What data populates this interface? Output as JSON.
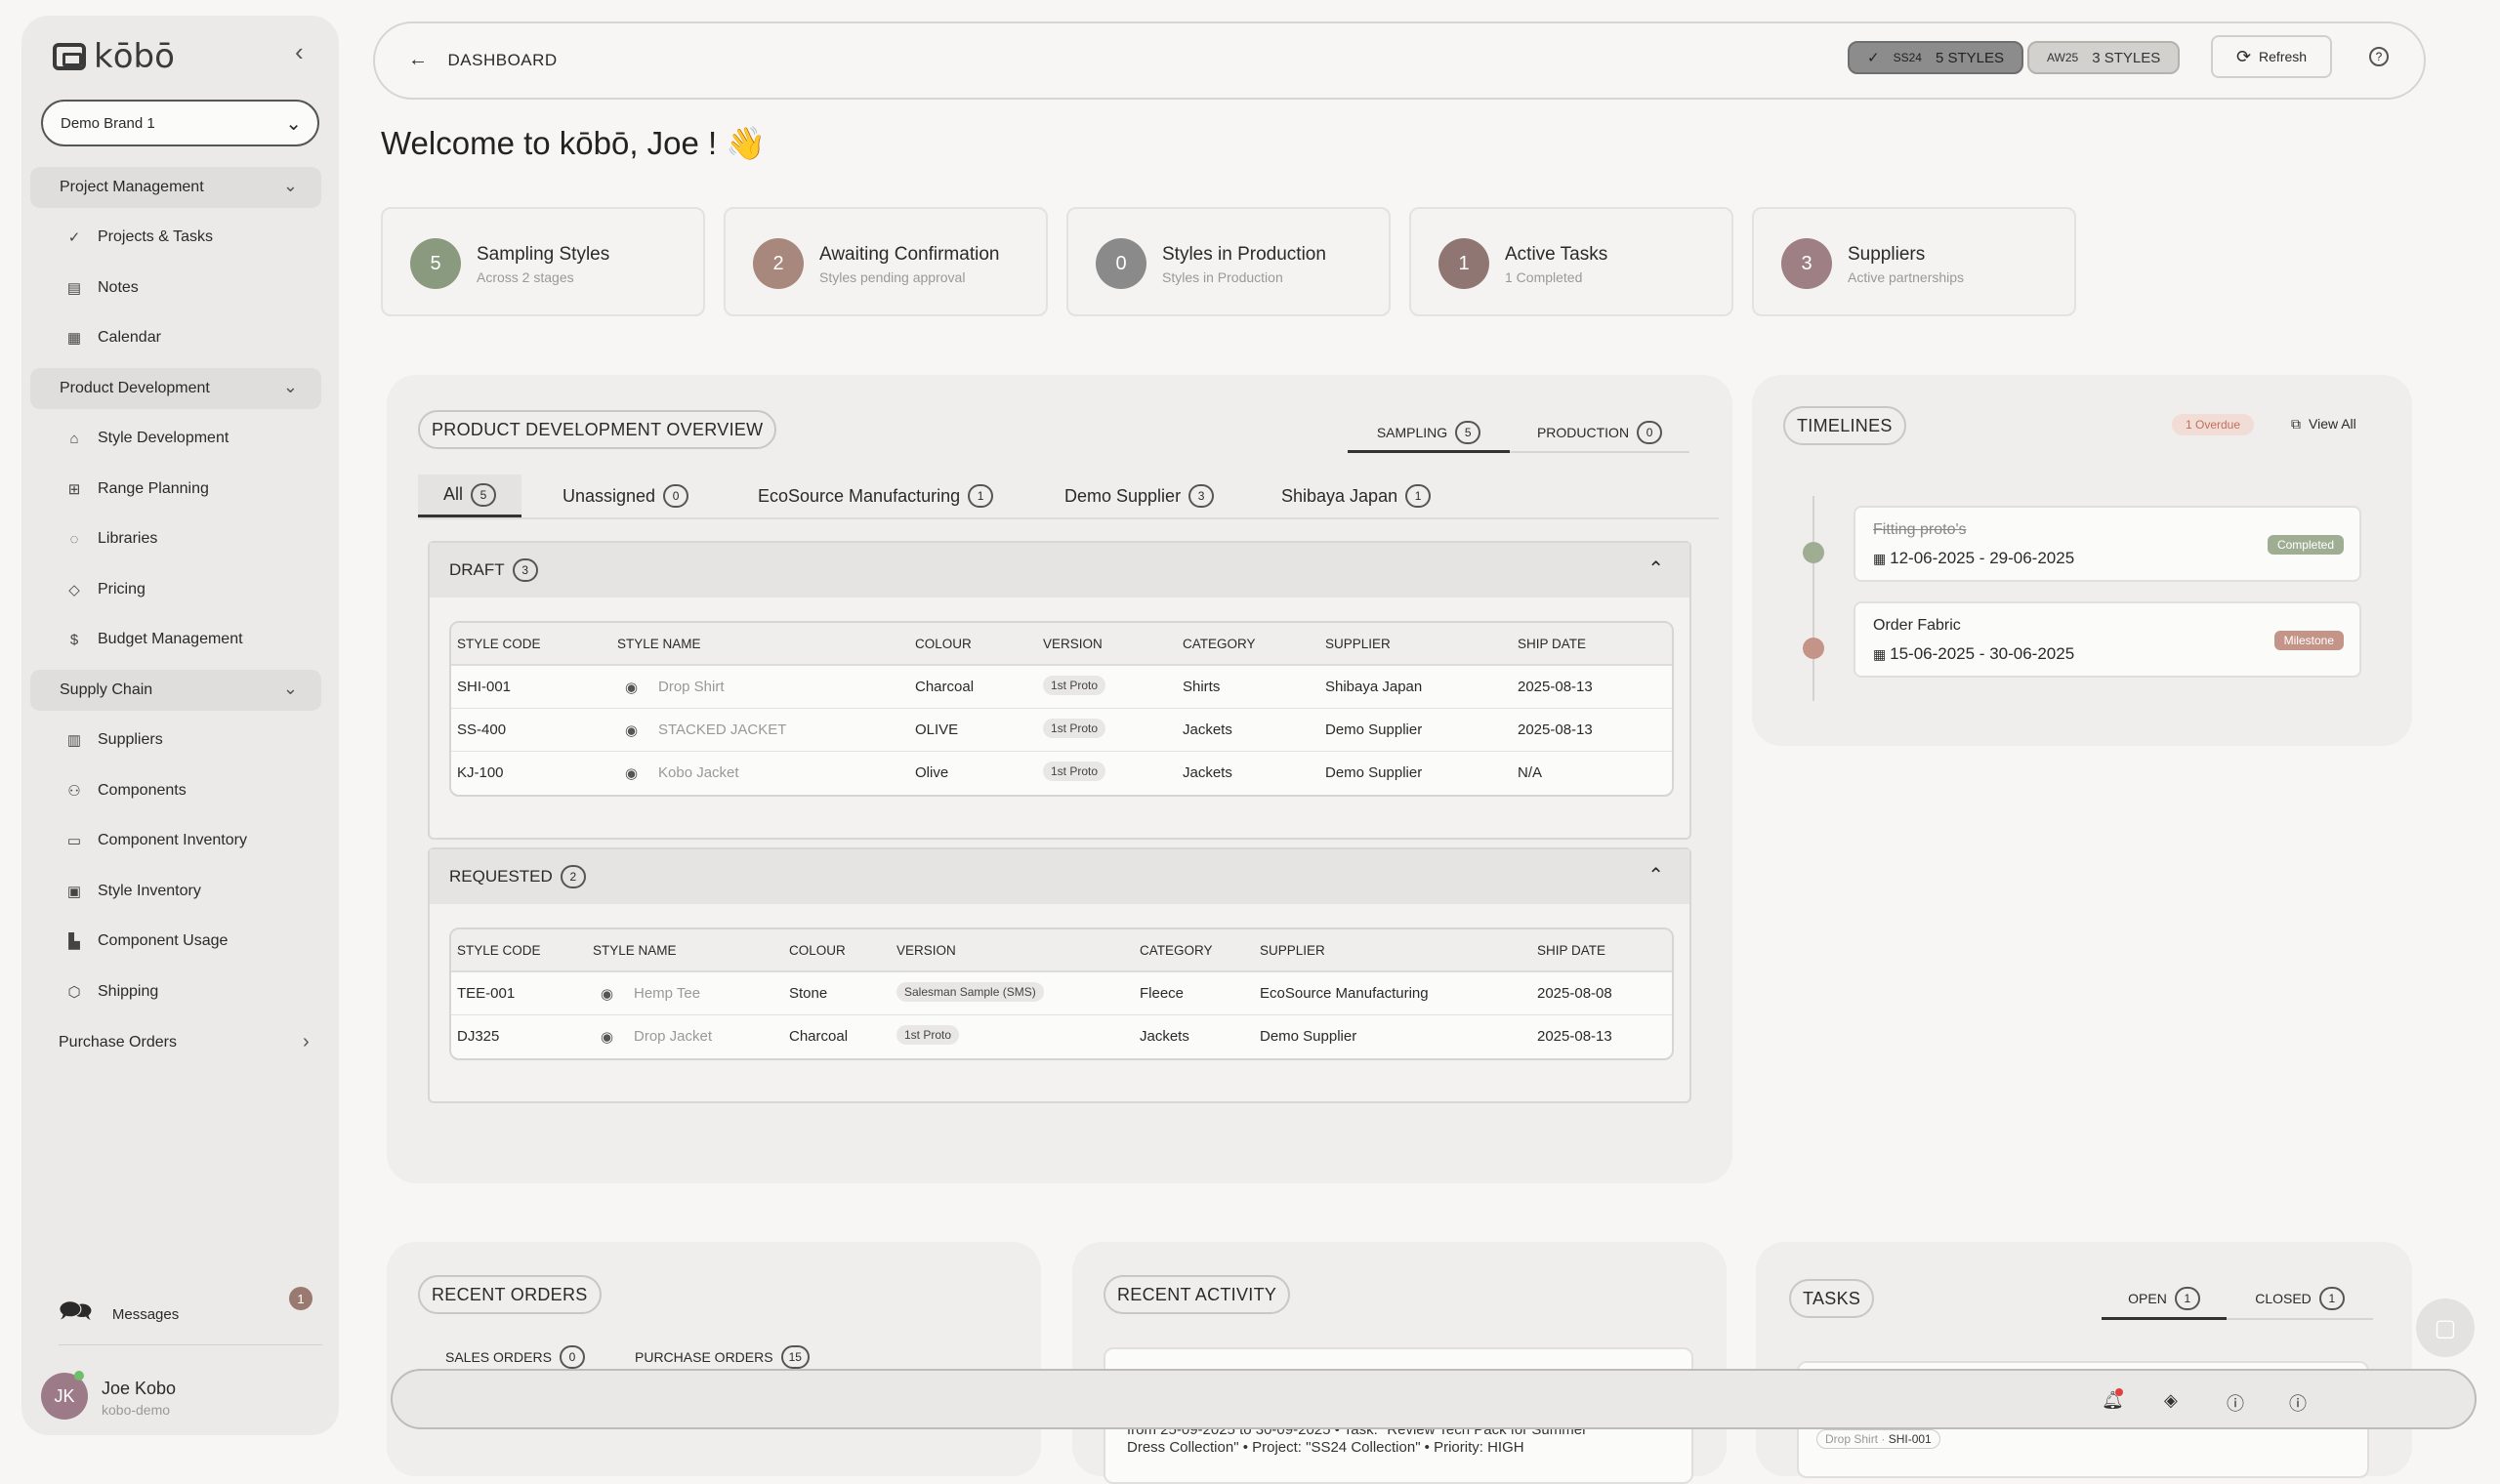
{
  "sidebar": {
    "logo": "kōbō",
    "brand": "Demo Brand 1",
    "groups": {
      "project": "Project Management",
      "product": "Product Development",
      "supply": "Supply Chain",
      "purchase": "Purchase Orders"
    },
    "items": {
      "projects": "Projects & Tasks",
      "notes": "Notes",
      "calendar": "Calendar",
      "style_dev": "Style Development",
      "range": "Range Planning",
      "libraries": "Libraries",
      "pricing": "Pricing",
      "budget": "Budget Management",
      "suppliers": "Suppliers",
      "components": "Components",
      "comp_inv": "Component Inventory",
      "style_inv": "Style Inventory",
      "comp_usage": "Component Usage",
      "shipping": "Shipping"
    },
    "messages": "Messages",
    "messages_count": "1",
    "user": {
      "initials": "JK",
      "name": "Joe Kobo",
      "handle": "kobo-demo"
    }
  },
  "topbar": {
    "back_label": "DASHBOARD",
    "seasons": [
      {
        "code": "SS24",
        "styles": "5 STYLES"
      },
      {
        "code": "AW25",
        "styles": "3 STYLES"
      }
    ],
    "refresh": "Refresh"
  },
  "welcome": "Welcome to kōbō, Joe ! 👋",
  "stats": [
    {
      "num": "5",
      "title": "Sampling Styles",
      "sub": "Across 2 stages",
      "color": "#8a9a7e"
    },
    {
      "num": "2",
      "title": "Awaiting Confirmation",
      "sub": "Styles pending approval",
      "color": "#a8877c"
    },
    {
      "num": "0",
      "title": "Styles in Production",
      "sub": "Styles in Production",
      "color": "#8a8a8a"
    },
    {
      "num": "1",
      "title": "Active Tasks",
      "sub": "1 Completed",
      "color": "#8f7672"
    },
    {
      "num": "3",
      "title": "Suppliers",
      "sub": "Active partnerships",
      "color": "#9d7f84"
    }
  ],
  "overview": {
    "title": "PRODUCT DEVELOPMENT OVERVIEW",
    "tabs": [
      {
        "label": "SAMPLING",
        "count": "5"
      },
      {
        "label": "PRODUCTION",
        "count": "0"
      }
    ],
    "filters": [
      {
        "label": "All",
        "count": "5"
      },
      {
        "label": "Unassigned",
        "count": "0"
      },
      {
        "label": "EcoSource Manufacturing",
        "count": "1"
      },
      {
        "label": "Demo Supplier",
        "count": "3"
      },
      {
        "label": "Shibaya Japan",
        "count": "1"
      }
    ],
    "draft": {
      "label": "DRAFT",
      "count": "3",
      "headers": [
        "STYLE CODE",
        "STYLE NAME",
        "COLOUR",
        "VERSION",
        "CATEGORY",
        "SUPPLIER",
        "SHIP DATE"
      ],
      "rows": [
        [
          "SHI-001",
          "Drop Shirt",
          "Charcoal",
          "1st Proto",
          "Shirts",
          "Shibaya Japan",
          "2025-08-13"
        ],
        [
          "SS-400",
          "STACKED JACKET",
          "OLIVE",
          "1st Proto",
          "Jackets",
          "Demo Supplier",
          "2025-08-13"
        ],
        [
          "KJ-100",
          "Kobo Jacket",
          "Olive",
          "1st Proto",
          "Jackets",
          "Demo Supplier",
          "N/A"
        ]
      ]
    },
    "requested": {
      "label": "REQUESTED",
      "count": "2",
      "headers": [
        "STYLE CODE",
        "STYLE NAME",
        "COLOUR",
        "VERSION",
        "CATEGORY",
        "SUPPLIER",
        "SHIP DATE"
      ],
      "rows": [
        [
          "TEE-001",
          "Hemp Tee",
          "Stone",
          "Salesman Sample (SMS)",
          "Fleece",
          "EcoSource Manufacturing",
          "2025-08-08"
        ],
        [
          "DJ325",
          "Drop Jacket",
          "Charcoal",
          "1st Proto",
          "Jackets",
          "Demo Supplier",
          "2025-08-13"
        ]
      ]
    }
  },
  "timelines": {
    "title": "TIMELINES",
    "overdue": "1 Overdue",
    "view_all": "View All",
    "items": [
      {
        "name": "Fitting proto's",
        "dates": "12-06-2025 - 29-06-2025",
        "badge": "Completed",
        "badge_color": "#9fae93",
        "dot": "#9fae93"
      },
      {
        "name": "Order Fabric",
        "dates": "15-06-2025 - 30-06-2025",
        "badge": "Milestone",
        "badge_color": "#c49488",
        "dot": "#c49488"
      }
    ]
  },
  "recent_orders": {
    "title": "RECENT ORDERS",
    "tabs": [
      {
        "label": "SALES ORDERS",
        "count": "0"
      },
      {
        "label": "PURCHASE ORDERS",
        "count": "15"
      }
    ]
  },
  "recent_activity": {
    "title": "RECENT ACTIVITY",
    "snippet_1": "from 25-09-2025 to 30-09-2025 • Task: \"Review Tech Pack for Summer",
    "snippet_2": "Dress Collection\" • Project: \"SS24 Collection\" • Priority: HIGH"
  },
  "tasks": {
    "title": "TASKS",
    "tabs": [
      {
        "label": "OPEN",
        "count": "1"
      },
      {
        "label": "CLOSED",
        "count": "1"
      }
    ],
    "chip": "Drop Shirt",
    "chip_code": "SHI-001"
  }
}
